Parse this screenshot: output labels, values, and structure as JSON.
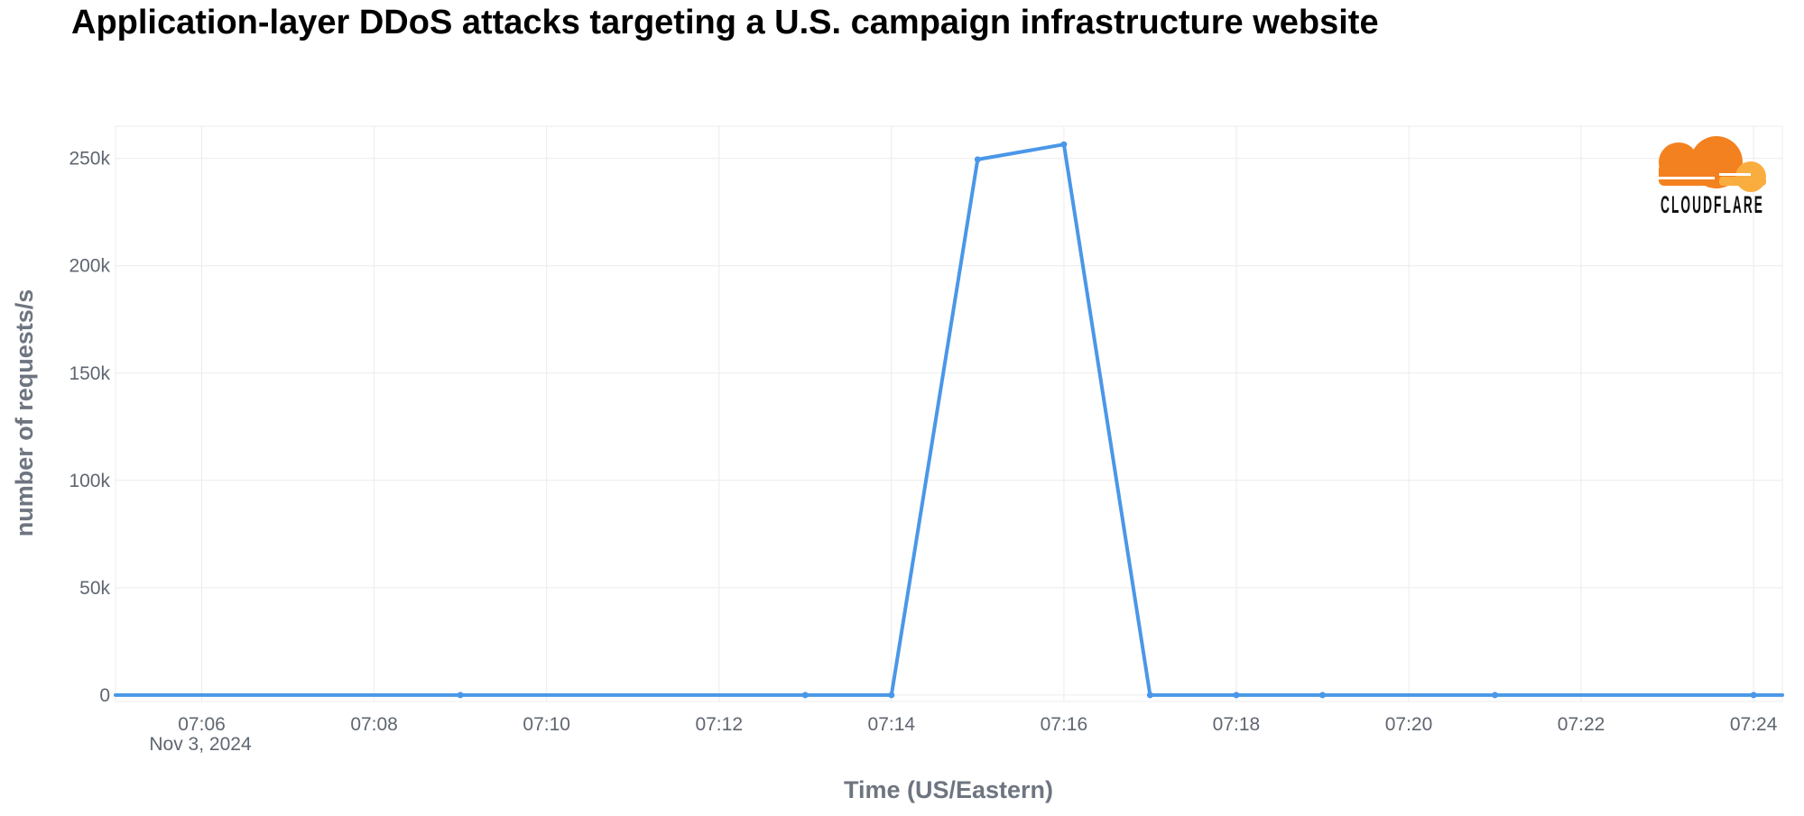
{
  "chart_data": {
    "type": "line",
    "title": "Application-layer DDoS attacks targeting a U.S. campaign infrastructure website",
    "xlabel": "Time (US/Eastern)",
    "ylabel": "number of requests/s",
    "date_label": "Nov 3, 2024",
    "x_tick_labels": [
      "07:06",
      "07:08",
      "07:10",
      "07:12",
      "07:14",
      "07:16",
      "07:18",
      "07:20",
      "07:22",
      "07:24"
    ],
    "y_tick_labels": [
      "0",
      "50k",
      "100k",
      "150k",
      "200k",
      "250k"
    ],
    "y_tick_values": [
      0,
      50000,
      100000,
      150000,
      200000,
      250000
    ],
    "xlim": [
      "07:05",
      "07:24:20"
    ],
    "ylim": [
      -3000,
      265000
    ],
    "grid": true,
    "legend": "none",
    "series": [
      {
        "x": [
          "07:09",
          "07:13",
          "07:14",
          "07:15",
          "07:16",
          "07:17",
          "07:18",
          "07:19",
          "07:21",
          "07:24"
        ],
        "values": [
          0,
          0,
          0,
          249500,
          256500,
          0,
          0,
          0,
          0,
          0
        ],
        "color": "#4a97e8"
      }
    ]
  },
  "logo": {
    "text": "CLOUDFLARE",
    "colors": {
      "orange": "#f48120",
      "light_orange": "#faad3f"
    }
  },
  "colors": {
    "grid": "#ececec",
    "axis_text": "#5f6670",
    "axis_title": "#6e7580"
  }
}
